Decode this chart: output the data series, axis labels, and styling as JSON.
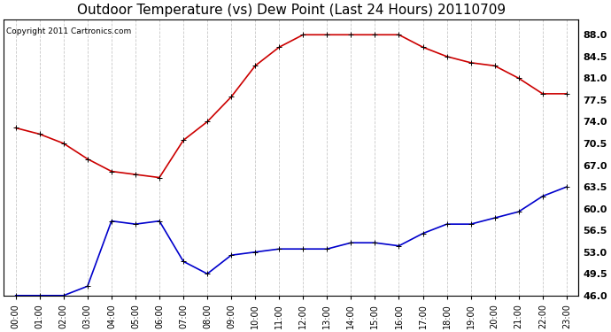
{
  "title": "Outdoor Temperature (vs) Dew Point (Last 24 Hours) 20110709",
  "copyright": "Copyright 2011 Cartronics.com",
  "hours": [
    "00:00",
    "01:00",
    "02:00",
    "03:00",
    "04:00",
    "05:00",
    "06:00",
    "07:00",
    "08:00",
    "09:00",
    "10:00",
    "11:00",
    "12:00",
    "13:00",
    "14:00",
    "15:00",
    "16:00",
    "17:00",
    "18:00",
    "19:00",
    "20:00",
    "21:00",
    "22:00",
    "23:00"
  ],
  "temp": [
    73.0,
    72.0,
    70.5,
    68.0,
    66.0,
    65.5,
    65.0,
    71.0,
    74.0,
    78.0,
    83.0,
    86.0,
    88.0,
    88.0,
    88.0,
    88.0,
    88.0,
    86.0,
    84.5,
    83.5,
    83.0,
    81.0,
    78.5,
    78.5
  ],
  "dewpoint": [
    46.0,
    46.0,
    46.0,
    47.5,
    58.0,
    57.5,
    58.0,
    51.5,
    49.5,
    52.5,
    53.0,
    53.5,
    53.5,
    53.5,
    54.5,
    54.5,
    54.0,
    56.0,
    57.5,
    57.5,
    58.5,
    59.5,
    62.0,
    63.5
  ],
  "temp_color": "#cc0000",
  "dew_color": "#0000cc",
  "bg_color": "#ffffff",
  "grid_color": "#c8c8c8",
  "ylim": [
    46.0,
    90.5
  ],
  "yticks_right": [
    46.0,
    49.5,
    53.0,
    56.5,
    60.0,
    63.5,
    67.0,
    70.5,
    74.0,
    77.5,
    81.0,
    84.5,
    88.0
  ],
  "marker": "+",
  "marker_size": 5,
  "linewidth": 1.2,
  "title_fontsize": 11,
  "copyright_fontsize": 6.5,
  "tick_fontsize": 7,
  "ytick_fontsize": 8
}
